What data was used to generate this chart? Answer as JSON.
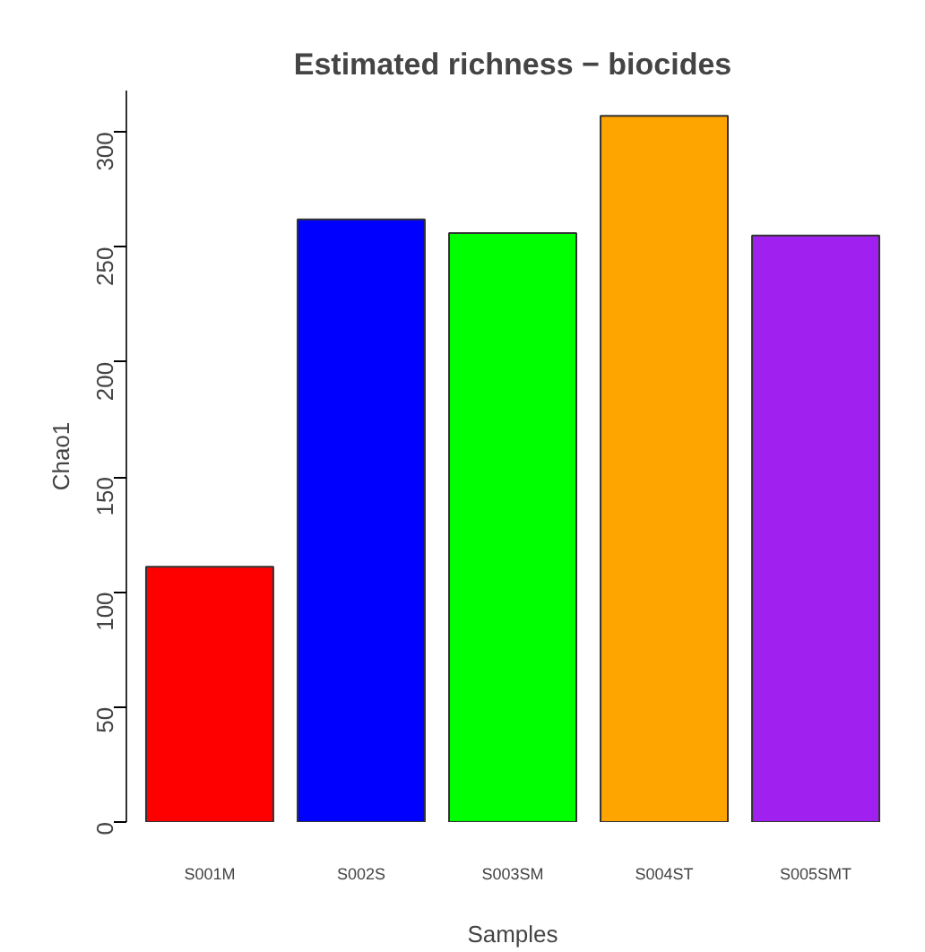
{
  "chart_data": {
    "type": "bar",
    "title": "Estimated richness − biocides",
    "xlabel": "Samples",
    "ylabel": "Chao1",
    "categories": [
      "S001M",
      "S002S",
      "S003SM",
      "S004ST",
      "S005SMT"
    ],
    "values": [
      111,
      262,
      256,
      307,
      255
    ],
    "colors": [
      "#ff0000",
      "#0000ff",
      "#00ff00",
      "#ffa500",
      "#a020f0"
    ],
    "ylim": [
      0,
      318
    ],
    "yticks": [
      0,
      50,
      100,
      150,
      200,
      250,
      300
    ],
    "grid": false
  }
}
